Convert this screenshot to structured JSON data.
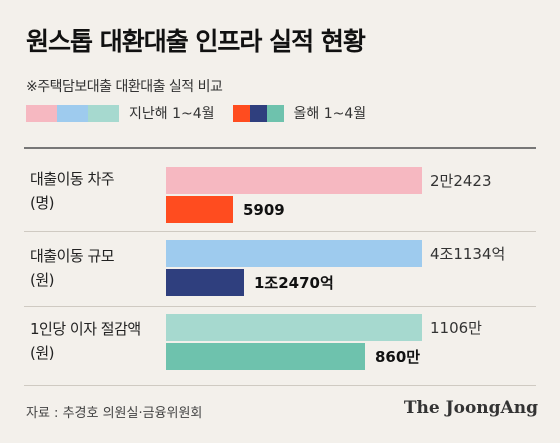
{
  "chart_data": {
    "type": "bar",
    "title": "원스톱 대환대출 인프라 실적 현황",
    "subtitle": "※주택담보대출 대환대출 실적 비교",
    "categories": [
      [
        "대출이동 차주",
        "(명)"
      ],
      [
        "대출이동 규모",
        "(원)"
      ],
      [
        "1인당 이자 절감액",
        "(원)"
      ]
    ],
    "series": [
      {
        "name": "지난해 1~4월",
        "values": [
          22423,
          41134,
          1106
        ],
        "labels": [
          "2만2423",
          "4조1134억",
          "1106만"
        ],
        "colors": [
          "#f6b8c1",
          "#9ecbee",
          "#a6d9cf"
        ]
      },
      {
        "name": "올해 1~4월",
        "values": [
          5909,
          12470,
          860
        ],
        "labels": [
          "5909",
          "1조2470억",
          "860만"
        ],
        "colors": [
          "#ff4c1f",
          "#2f3f7e",
          "#6ec2ad"
        ]
      }
    ],
    "source": "자료 : 추경호 의원실·금융위원회",
    "brand": "The JoongAng"
  }
}
